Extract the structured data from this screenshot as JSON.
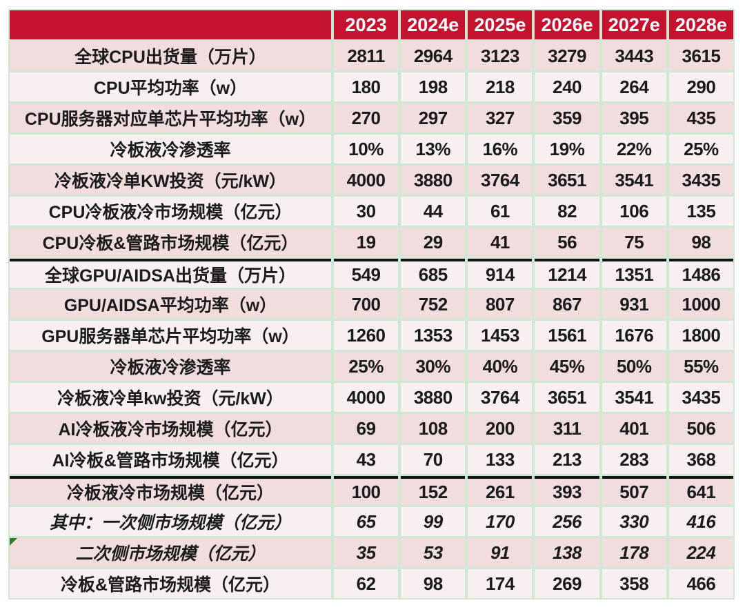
{
  "chart_data": {
    "type": "table",
    "header": {
      "corner": "",
      "years": [
        "2023",
        "2024e",
        "2025e",
        "2026e",
        "2027e",
        "2028e"
      ]
    },
    "rows": [
      {
        "label": "全球CPU出货量（万片）",
        "values": [
          "2811",
          "2964",
          "3123",
          "3279",
          "3443",
          "3615"
        ],
        "italic": false,
        "thick_top": false,
        "corner_flag": false
      },
      {
        "label": "CPU平均功率（w）",
        "values": [
          "180",
          "198",
          "218",
          "240",
          "264",
          "290"
        ],
        "italic": false,
        "thick_top": false,
        "corner_flag": false
      },
      {
        "label": "CPU服务器对应单芯片平均功率（w）",
        "values": [
          "270",
          "297",
          "327",
          "359",
          "395",
          "435"
        ],
        "italic": false,
        "thick_top": false,
        "corner_flag": false
      },
      {
        "label": "冷板液冷渗透率",
        "values": [
          "10%",
          "13%",
          "16%",
          "19%",
          "22%",
          "25%"
        ],
        "italic": false,
        "thick_top": false,
        "corner_flag": false
      },
      {
        "label": "冷板液冷单KW投资（元/kW）",
        "values": [
          "4000",
          "3880",
          "3764",
          "3651",
          "3541",
          "3435"
        ],
        "italic": false,
        "thick_top": false,
        "corner_flag": false
      },
      {
        "label": "CPU冷板液冷市场规模（亿元）",
        "values": [
          "30",
          "44",
          "61",
          "82",
          "106",
          "135"
        ],
        "italic": false,
        "thick_top": false,
        "corner_flag": false
      },
      {
        "label": "CPU冷板&管路市场规模（亿元）",
        "values": [
          "19",
          "29",
          "41",
          "56",
          "75",
          "98"
        ],
        "italic": false,
        "thick_top": false,
        "corner_flag": false
      },
      {
        "label": "全球GPU/AIDSA出货量（万片）",
        "values": [
          "549",
          "685",
          "914",
          "1214",
          "1351",
          "1486"
        ],
        "italic": false,
        "thick_top": true,
        "corner_flag": false
      },
      {
        "label": "GPU/AIDSA平均功率（w）",
        "values": [
          "700",
          "752",
          "807",
          "867",
          "931",
          "1000"
        ],
        "italic": false,
        "thick_top": false,
        "corner_flag": false
      },
      {
        "label": "GPU服务器单芯片平均功率（w）",
        "values": [
          "1260",
          "1353",
          "1453",
          "1561",
          "1676",
          "1800"
        ],
        "italic": false,
        "thick_top": false,
        "corner_flag": false
      },
      {
        "label": "冷板液冷渗透率",
        "values": [
          "25%",
          "30%",
          "40%",
          "45%",
          "50%",
          "55%"
        ],
        "italic": false,
        "thick_top": false,
        "corner_flag": false
      },
      {
        "label": "冷板液冷单kw投资（元/kW）",
        "values": [
          "4000",
          "3880",
          "3764",
          "3651",
          "3541",
          "3435"
        ],
        "italic": false,
        "thick_top": false,
        "corner_flag": false
      },
      {
        "label": "AI冷板液冷市场规模（亿元）",
        "values": [
          "69",
          "108",
          "200",
          "311",
          "401",
          "506"
        ],
        "italic": false,
        "thick_top": false,
        "corner_flag": false
      },
      {
        "label": "AI冷板&管路市场规模（亿元）",
        "values": [
          "43",
          "70",
          "133",
          "213",
          "283",
          "368"
        ],
        "italic": false,
        "thick_top": false,
        "corner_flag": false
      },
      {
        "label": "冷板液冷市场规模（亿元）",
        "values": [
          "100",
          "152",
          "261",
          "393",
          "507",
          "641"
        ],
        "italic": false,
        "thick_top": true,
        "corner_flag": false
      },
      {
        "label": "其中：一次侧市场规模（亿元）",
        "values": [
          "65",
          "99",
          "170",
          "256",
          "330",
          "416"
        ],
        "italic": true,
        "thick_top": false,
        "corner_flag": false
      },
      {
        "label": "二次侧市场规模（亿元）",
        "values": [
          "35",
          "53",
          "91",
          "138",
          "178",
          "224"
        ],
        "italic": true,
        "thick_top": false,
        "corner_flag": true
      },
      {
        "label": "冷板&管路市场规模（亿元）",
        "values": [
          "62",
          "98",
          "174",
          "269",
          "358",
          "466"
        ],
        "italic": false,
        "thick_top": false,
        "corner_flag": false
      }
    ]
  },
  "colors": {
    "header_bg": "#c5122f",
    "header_text": "#ffffff",
    "row_pink": "#f1dddd",
    "row_light": "#f8f0f0",
    "grid_green": "#cfe8d3",
    "divider_black": "#141414",
    "flag_green": "#2e7d32",
    "text": "#1b1b1b"
  }
}
